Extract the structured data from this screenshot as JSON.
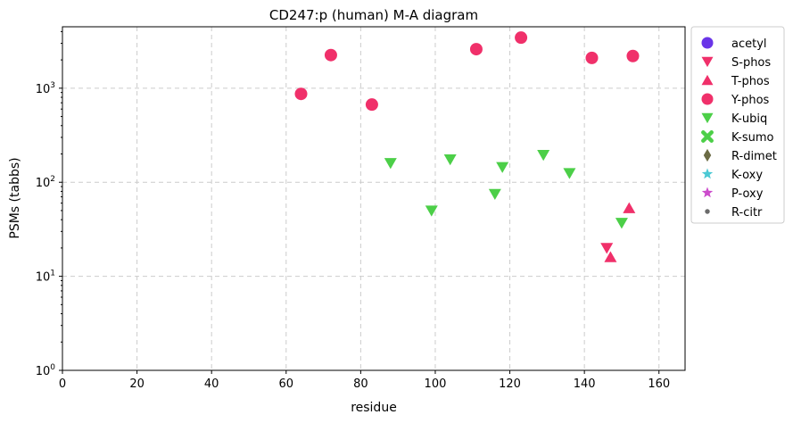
{
  "chart_data": {
    "type": "scatter",
    "title": "CD247:p (human) M-A diagram",
    "xlabel": "residue",
    "ylabel": "PSMs (tabbs)",
    "xlim": [
      0,
      167
    ],
    "ylim": [
      1,
      4500
    ],
    "yscale": "log",
    "x_ticks": [
      0,
      20,
      40,
      60,
      80,
      100,
      120,
      140,
      160
    ],
    "y_ticks": [
      {
        "value": 1,
        "base": "10",
        "exp": "0"
      },
      {
        "value": 10,
        "base": "10",
        "exp": "1"
      },
      {
        "value": 100,
        "base": "10",
        "exp": "2"
      },
      {
        "value": 1000,
        "base": "10",
        "exp": "3"
      }
    ],
    "grid": true,
    "legend_position": "outside-right",
    "series": [
      {
        "name": "acetyl",
        "marker": "circle",
        "color": "#6a35e8",
        "points": []
      },
      {
        "name": "S-phos",
        "marker": "triangle-down",
        "color": "#f0306a",
        "points": [
          [
            146,
            20
          ]
        ]
      },
      {
        "name": "T-phos",
        "marker": "triangle-up",
        "color": "#f0306a",
        "points": [
          [
            147,
            16
          ],
          [
            152,
            53
          ]
        ]
      },
      {
        "name": "Y-phos",
        "marker": "circle",
        "color": "#f0306a",
        "points": [
          [
            64,
            870
          ],
          [
            72,
            2250
          ],
          [
            83,
            670
          ],
          [
            111,
            2600
          ],
          [
            123,
            3450
          ],
          [
            142,
            2100
          ],
          [
            153,
            2200
          ]
        ]
      },
      {
        "name": "K-ubiq",
        "marker": "triangle-down",
        "color": "#4ccf48",
        "points": [
          [
            88,
            160
          ],
          [
            99,
            50
          ],
          [
            104,
            175
          ],
          [
            116,
            75
          ],
          [
            118,
            145
          ],
          [
            129,
            195
          ],
          [
            136,
            125
          ],
          [
            150,
            37
          ]
        ]
      },
      {
        "name": "K-sumo",
        "marker": "x",
        "color": "#4ccf48",
        "points": []
      },
      {
        "name": "R-dimet",
        "marker": "diamond",
        "color": "#6b6b45",
        "points": []
      },
      {
        "name": "K-oxy",
        "marker": "star",
        "color": "#4cc9d4",
        "points": []
      },
      {
        "name": "P-oxy",
        "marker": "star",
        "color": "#cc4ccc",
        "points": []
      },
      {
        "name": "R-citr",
        "marker": "dot",
        "color": "#6b6b6b",
        "points": []
      }
    ]
  }
}
